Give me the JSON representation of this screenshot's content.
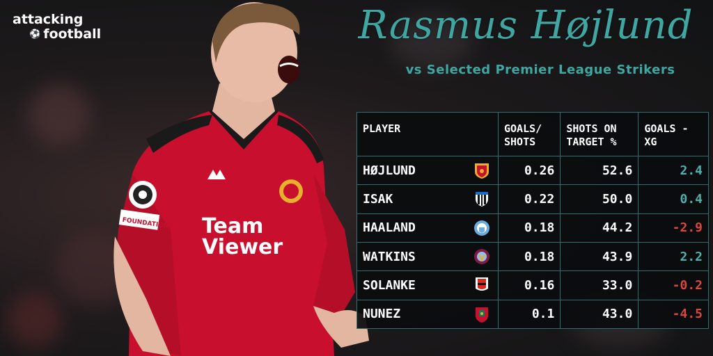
{
  "brand": {
    "line1": "attacking",
    "line2": "football"
  },
  "title": "Rasmus Højlund",
  "subtitle": "vs Selected Premier League Strikers",
  "table": {
    "headers": {
      "player": "PLAYER",
      "goals_shots": [
        "GOALS/",
        "SHOTS"
      ],
      "shots_on_target": [
        "SHOTS ON",
        "TARGET %"
      ],
      "goals_minus_xg": [
        "GOALS -",
        "XG"
      ]
    },
    "rows": [
      {
        "name": "HØJLUND",
        "club_icon": "man-utd-crest-icon",
        "goals_shots": "0.26",
        "sot": "52.6",
        "gxg": "2.4",
        "sign": "pos"
      },
      {
        "name": "ISAK",
        "club_icon": "newcastle-crest-icon",
        "goals_shots": "0.22",
        "sot": "50.0",
        "gxg": "0.4",
        "sign": "pos"
      },
      {
        "name": "HAALAND",
        "club_icon": "man-city-crest-icon",
        "goals_shots": "0.18",
        "sot": "44.2",
        "gxg": "-2.9",
        "sign": "neg"
      },
      {
        "name": "WATKINS",
        "club_icon": "aston-villa-crest-icon",
        "goals_shots": "0.18",
        "sot": "43.9",
        "gxg": "2.2",
        "sign": "pos"
      },
      {
        "name": "SOLANKE",
        "club_icon": "bournemouth-crest-icon",
        "goals_shots": "0.16",
        "sot": "33.0",
        "gxg": "-0.2",
        "sign": "neg"
      },
      {
        "name": "NUNEZ",
        "club_icon": "liverpool-crest-icon",
        "goals_shots": "0.1",
        "sot": "43.0",
        "gxg": "-4.5",
        "sign": "neg"
      }
    ]
  },
  "shirt": {
    "sponsor_line1": "Team",
    "sponsor_line2": "Viewer",
    "badge_text": "FOUNDATION"
  },
  "colors": {
    "accent": "#3fa6a2",
    "positive": "#4fb0ac",
    "negative": "#d9473f",
    "shirt": "#c8102e"
  }
}
